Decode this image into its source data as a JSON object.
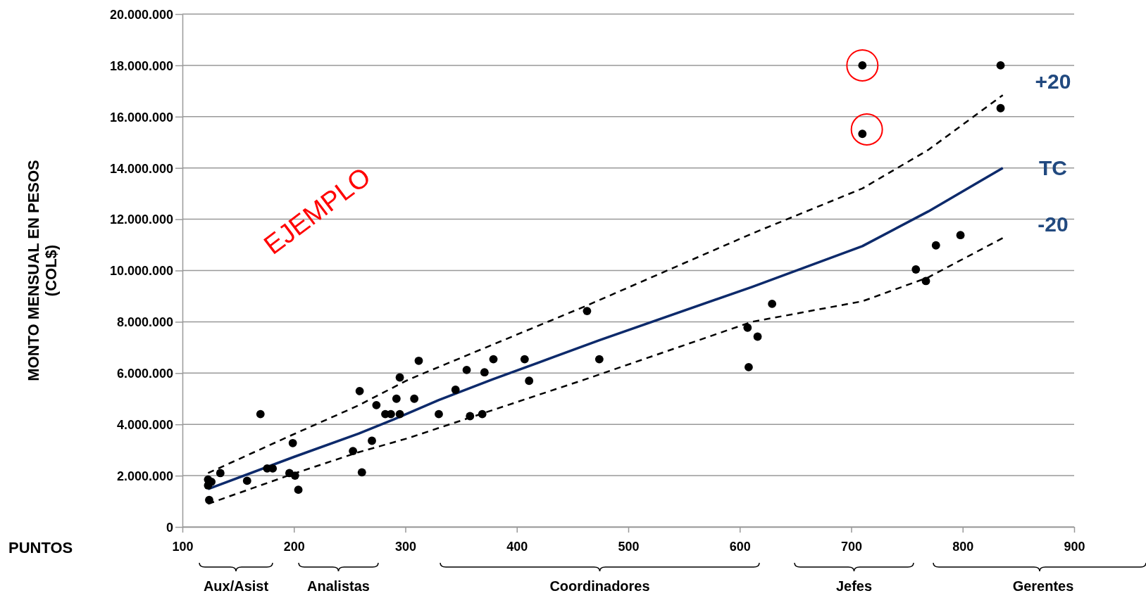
{
  "chart_data": {
    "type": "scatter",
    "xlabel": "PUNTOS",
    "ylabel": "MONTO MENSUAL EN PESOS\n(COL$)",
    "xlim": [
      100,
      900
    ],
    "xticks": [
      100,
      200,
      300,
      400,
      500,
      600,
      700,
      800,
      900
    ],
    "ylim": [
      0,
      20000000
    ],
    "yticks": [
      0,
      {
        "value": 2000000,
        "label": "2.000.000"
      },
      {
        "value": 4000000,
        "label": "4.000.000"
      },
      {
        "value": 6000000,
        "label": "6.000.000"
      },
      {
        "value": 8000000,
        "label": "8.000.000"
      },
      {
        "value": 10000000,
        "label": "10.000.000"
      },
      {
        "value": 12000000,
        "label": "12.000.000"
      },
      {
        "value": 14000000,
        "label": "14.000.000"
      },
      {
        "value": 16000000,
        "label": "16.000.000"
      },
      {
        "value": 18000000,
        "label": "18.000.000"
      },
      {
        "value": 20000000,
        "label": "20.000.000"
      }
    ],
    "grid": "y",
    "marker": "circle",
    "series": [
      {
        "color": "#000000",
        "x": [
          123,
          123,
          126,
          124,
          134,
          158,
          170,
          176,
          181,
          196,
          199,
          201,
          204,
          253,
          259,
          261,
          270,
          274,
          282,
          287,
          292,
          295,
          295,
          308,
          312,
          330,
          345,
          355,
          358,
          369,
          371,
          379,
          407,
          411,
          463,
          474,
          607,
          608,
          616,
          629,
          710,
          710,
          758,
          767,
          776,
          798,
          834,
          834
        ],
        "values": [
          1850000,
          1620000,
          1760000,
          1050000,
          2100000,
          1800000,
          4400000,
          2280000,
          2280000,
          2100000,
          3270000,
          2000000,
          1450000,
          2960000,
          5300000,
          2130000,
          3360000,
          4750000,
          4400000,
          4400000,
          5000000,
          5830000,
          4400000,
          5000000,
          6480000,
          4400000,
          5350000,
          6120000,
          4320000,
          4400000,
          6030000,
          6540000,
          6540000,
          5700000,
          8420000,
          6540000,
          7770000,
          6230000,
          7420000,
          8700000,
          18000000,
          15330000,
          10040000,
          9590000,
          10980000,
          11380000,
          18000000,
          16330000
        ]
      },
      {
        "type": "bubble",
        "color": "#ff0000",
        "x": [
          710,
          714
        ],
        "values": [
          18000000,
          15500000
        ],
        "sizes": [
          1,
          1
        ]
      },
      {
        "type": "line",
        "name": "TC",
        "color": "#0d2a6b",
        "line_style": "solid",
        "marker": "none",
        "x": [
          123,
          200,
          258,
          290,
          330,
          378,
          474,
          611,
          710,
          769,
          836
        ],
        "values": [
          1480000,
          2730000,
          3640000,
          4200000,
          4950000,
          5750000,
          7280000,
          9360000,
          10950000,
          12300000,
          14000000
        ]
      },
      {
        "type": "line",
        "name": "+20",
        "color": "#000000",
        "line_style": "dashed",
        "marker": "none",
        "x": [
          123,
          198,
          257,
          303,
          461,
          611,
          710,
          769,
          836
        ],
        "values": [
          2100000,
          3580000,
          4720000,
          5750000,
          8600000,
          11440000,
          13200000,
          14700000,
          16840000
        ]
      },
      {
        "type": "line",
        "name": "-20",
        "color": "#000000",
        "line_style": "dashed",
        "marker": "none",
        "x": [
          123,
          198,
          257,
          303,
          461,
          611,
          710,
          769,
          836
        ],
        "values": [
          900000,
          2050000,
          2900000,
          3470000,
          5750000,
          8000000,
          8800000,
          9730000,
          11270000
        ]
      }
    ],
    "annotations": [
      "EJEMPLO",
      "Aux/Asist",
      "Analistas",
      "Coordinadores",
      "Jefes",
      "Gerentes"
    ]
  }
}
